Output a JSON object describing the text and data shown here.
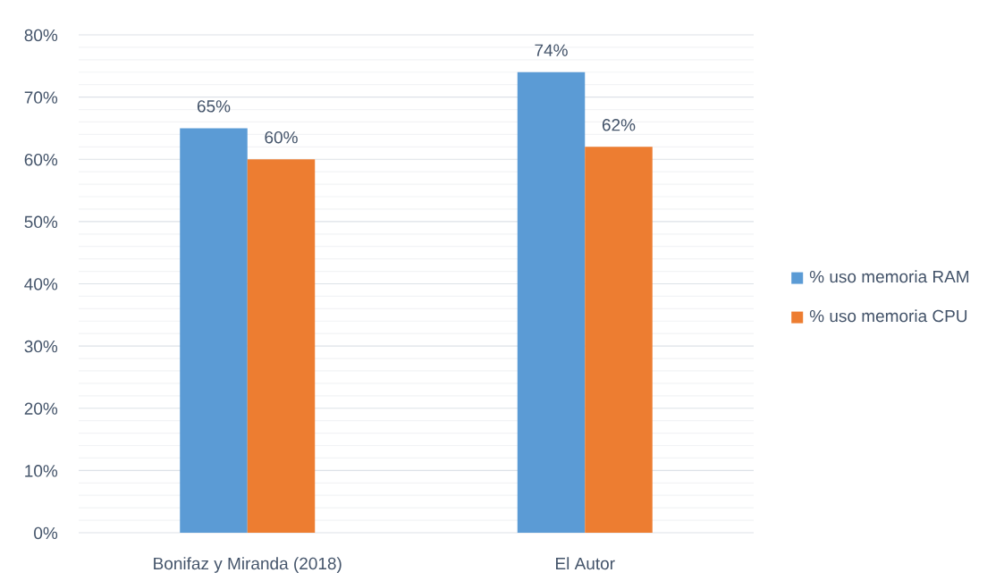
{
  "chart_data": {
    "type": "bar",
    "categories": [
      "Bonifaz y Miranda (2018)",
      "El Autor"
    ],
    "series": [
      {
        "name": "% uso memoria RAM",
        "color": "#5b9bd5",
        "values": [
          65,
          74
        ],
        "value_labels": [
          "65%",
          "74%"
        ]
      },
      {
        "name": "% uso memoria CPU",
        "color": "#ed7d31",
        "values": [
          60,
          62
        ],
        "value_labels": [
          "60%",
          "62%"
        ]
      }
    ],
    "ylim": [
      0,
      80
    ],
    "yticks": [
      {
        "value": 0,
        "label": "0%"
      },
      {
        "value": 10,
        "label": "10%"
      },
      {
        "value": 20,
        "label": "20%"
      },
      {
        "value": 30,
        "label": "30%"
      },
      {
        "value": 40,
        "label": "40%"
      },
      {
        "value": 50,
        "label": "50%"
      },
      {
        "value": 60,
        "label": "60%"
      },
      {
        "value": 70,
        "label": "70%"
      },
      {
        "value": 80,
        "label": "80%"
      }
    ],
    "grid": "y",
    "legend": "right"
  }
}
